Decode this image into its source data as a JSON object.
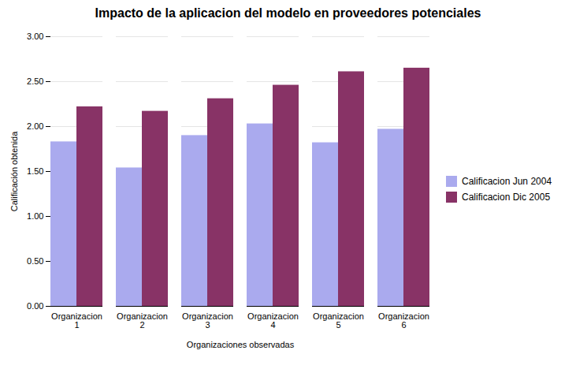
{
  "chart_data": {
    "type": "bar",
    "title": "Impacto de la aplicacion del modelo en proveedores potenciales",
    "xlabel": "Organizaciones observadas",
    "ylabel": "Calificación obtenida",
    "categories": [
      "Organizacion\n1",
      "Organizacion\n2",
      "Organizacion\n3",
      "Organizacion\n4",
      "Organizacion\n5",
      "Organizacion\n6"
    ],
    "series": [
      {
        "name": "Calificacion Jun 2004",
        "color": "#AAAAEE",
        "values": [
          1.83,
          1.54,
          1.9,
          2.03,
          1.82,
          1.97
        ]
      },
      {
        "name": "Calificacion Dic 2005",
        "color": "#883366",
        "values": [
          2.22,
          2.17,
          2.31,
          2.46,
          2.61,
          2.65
        ]
      }
    ],
    "ylim": [
      0,
      3.0
    ],
    "yticks": [
      {
        "value": 0.0,
        "label": "0.00"
      },
      {
        "value": 0.5,
        "label": "0.50"
      },
      {
        "value": 1.0,
        "label": "1.00"
      },
      {
        "value": 1.5,
        "label": "1.50"
      },
      {
        "value": 2.0,
        "label": "2.00"
      },
      {
        "value": 2.5,
        "label": "2.50"
      },
      {
        "value": 3.0,
        "label": "3.00"
      }
    ],
    "grid": true,
    "legend": "right"
  }
}
